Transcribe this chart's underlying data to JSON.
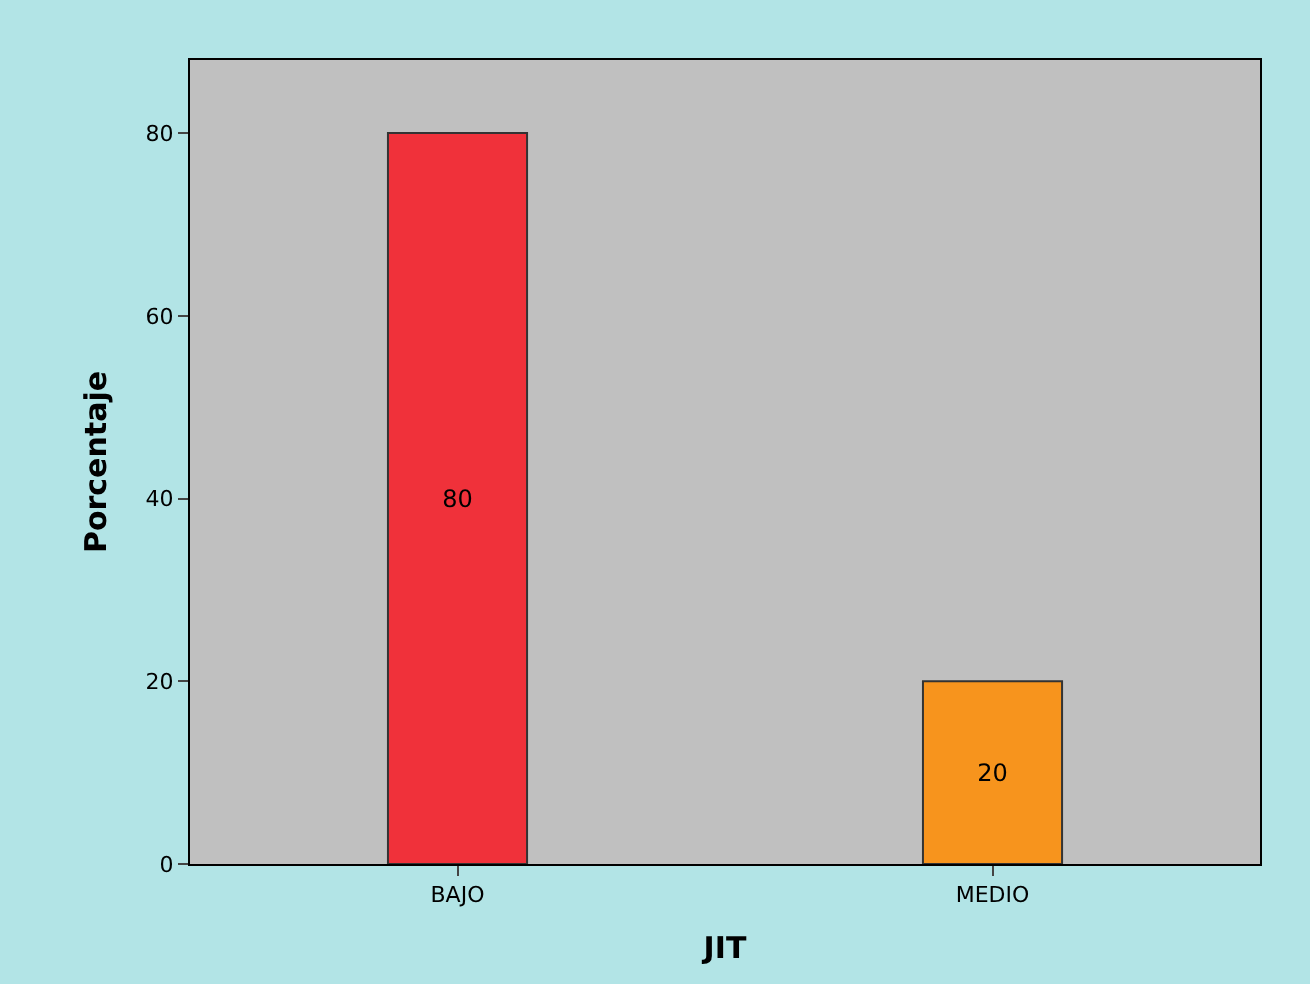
{
  "chart_data": {
    "type": "bar",
    "xlabel": "JIT",
    "ylabel": "Porcentaje",
    "categories": [
      "BAJO",
      "MEDIO"
    ],
    "values": [
      80,
      20
    ],
    "colors": [
      "#f0313a",
      "#f7941d"
    ],
    "ylim": [
      0,
      88
    ],
    "yticks": [
      0,
      20,
      40,
      60,
      80
    ],
    "data_labels": true,
    "grid": false
  }
}
